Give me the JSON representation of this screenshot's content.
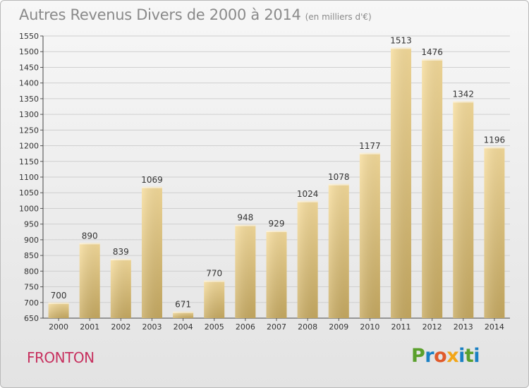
{
  "title": "Autres Revenus Divers de 2000 à 2014",
  "subtitle": "(en milliers d'€)",
  "location": "FRONTON",
  "brand": {
    "letters": [
      "P",
      "r",
      "o",
      "x",
      "i",
      "t",
      "i"
    ],
    "colors": [
      "#5aa02c",
      "#1a80c4",
      "#e05a2b",
      "#f2a618",
      "#1a80c4",
      "#5aa02c",
      "#1a80c4"
    ]
  },
  "chart_data": {
    "type": "bar",
    "categories": [
      "2000",
      "2001",
      "2002",
      "2003",
      "2004",
      "2005",
      "2006",
      "2007",
      "2008",
      "2009",
      "2010",
      "2011",
      "2012",
      "2013",
      "2014"
    ],
    "values": [
      700,
      890,
      839,
      1069,
      671,
      770,
      948,
      929,
      1024,
      1078,
      1177,
      1513,
      1476,
      1342,
      1196
    ],
    "ylim": [
      650,
      1550
    ],
    "ytick_step": 50,
    "grid": true,
    "bar_color": "#e6c977"
  }
}
